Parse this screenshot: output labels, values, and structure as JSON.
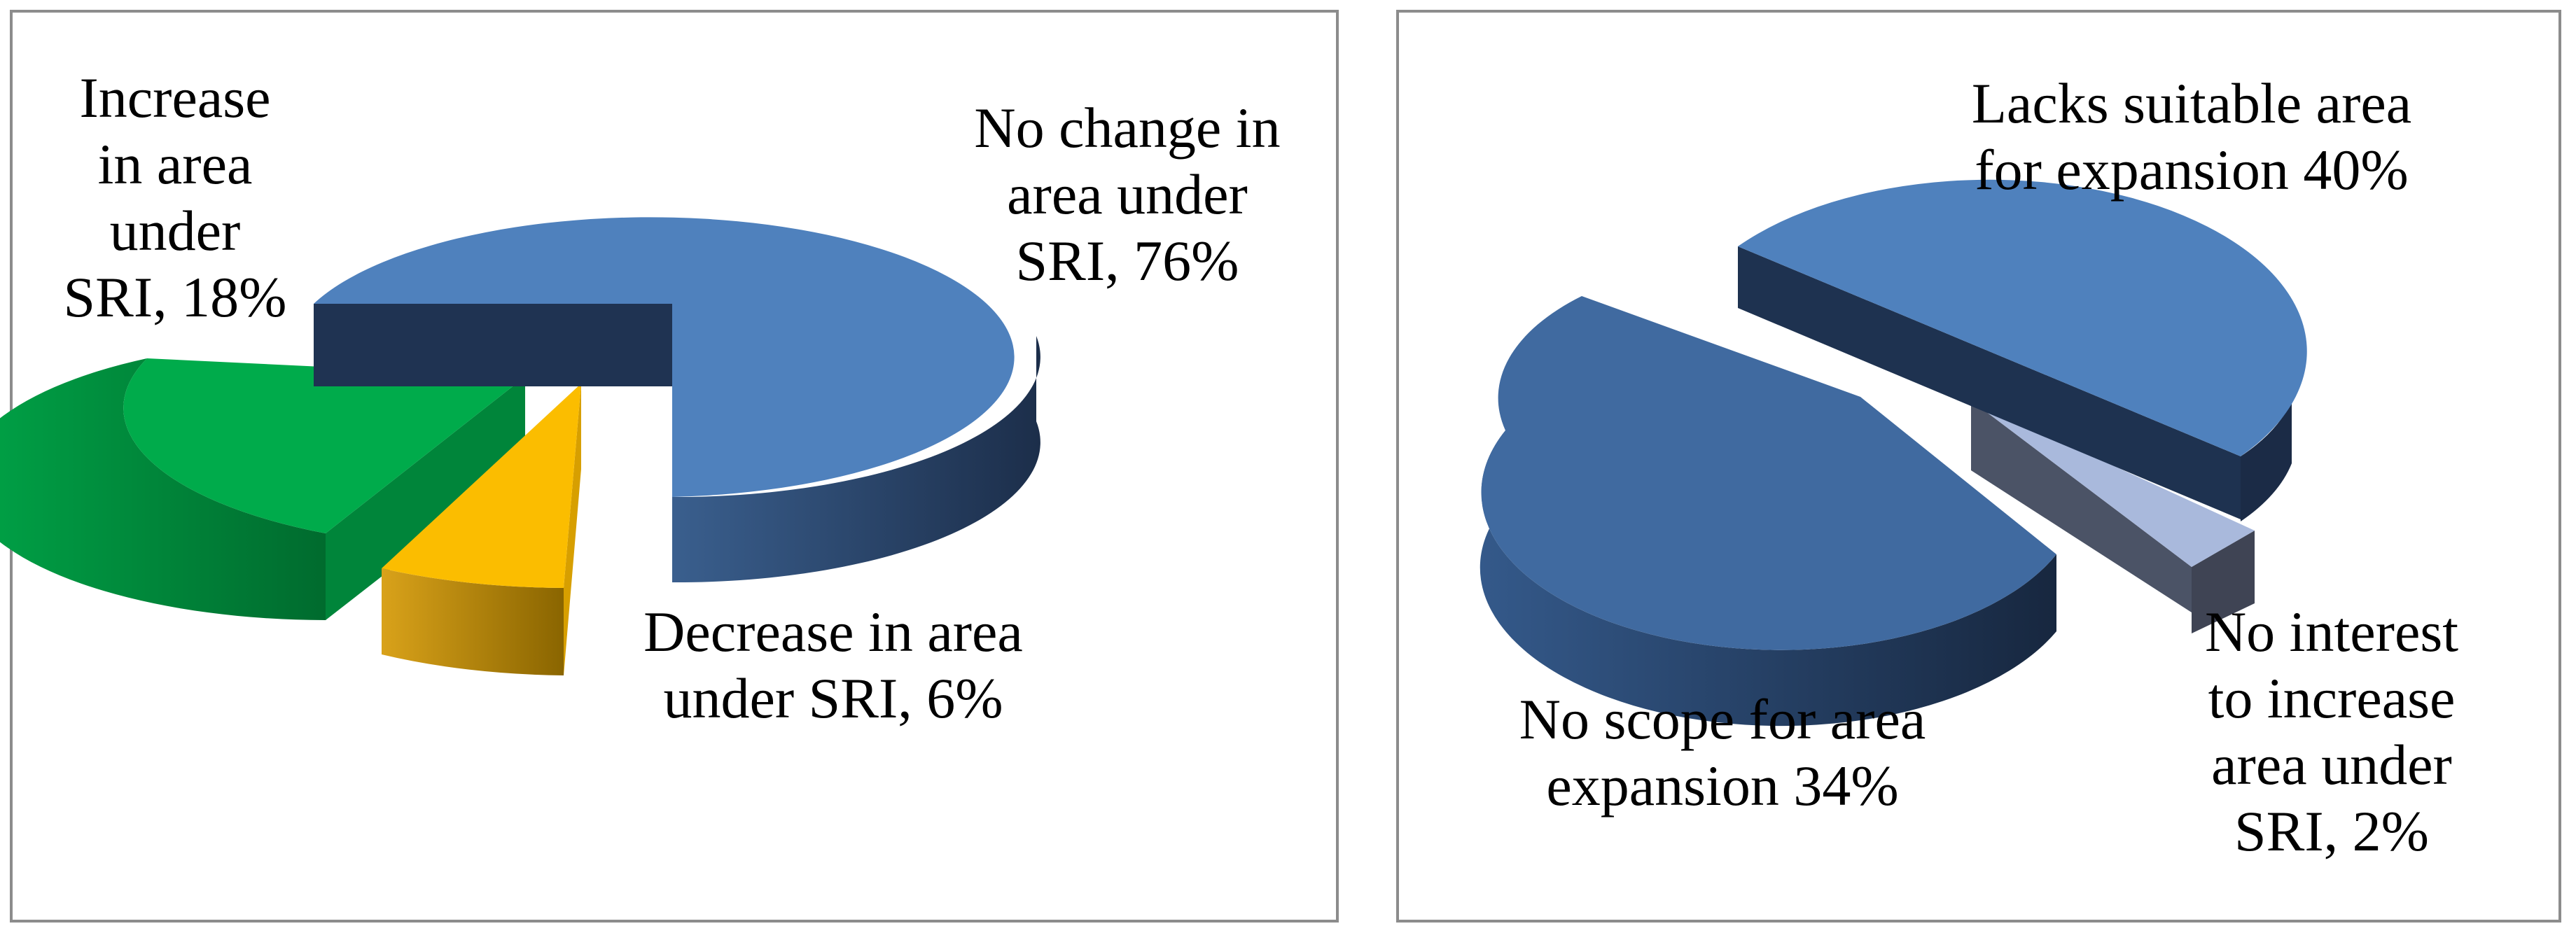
{
  "chart_data": [
    {
      "type": "pie",
      "style": "3D exploded",
      "categories": [
        "No change in area under SRI",
        "Decrease in area under SRI",
        "Increase in area under SRI"
      ],
      "values": [
        76,
        6,
        18
      ],
      "unit": "%",
      "colors": [
        "#4f81bd",
        "#fbbd00",
        "#00ab4b"
      ],
      "labels": [
        {
          "lines": [
            "No change in",
            "area under",
            "SRI, 76%"
          ]
        },
        {
          "lines": [
            "Decrease in area",
            "under SRI, 6%"
          ]
        },
        {
          "lines": [
            "Increase",
            "in area",
            "under",
            "SRI, 18%"
          ]
        }
      ]
    },
    {
      "type": "pie",
      "style": "3D exploded",
      "categories": [
        "Lacks suitable area for expansion",
        "No interest to increase area under SRI",
        "No scope for area expansion"
      ],
      "values": [
        40,
        2,
        34
      ],
      "unit": "%",
      "colors": [
        "#4f81bd",
        "#a9b9dc",
        "#406aa0"
      ],
      "labels": [
        {
          "lines": [
            "Lacks suitable area",
            "for expansion 40%"
          ]
        },
        {
          "lines": [
            "No interest",
            "to increase",
            "area under",
            "SRI, 2%"
          ]
        },
        {
          "lines": [
            "No scope for area",
            "expansion 34%"
          ]
        }
      ]
    }
  ]
}
